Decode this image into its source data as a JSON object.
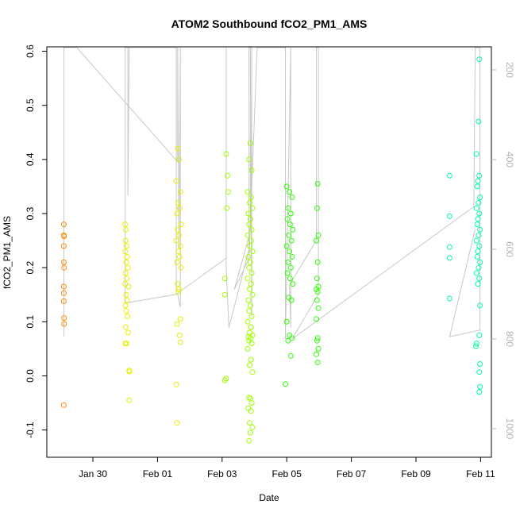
{
  "chart_data": {
    "type": "scatter",
    "title": "ATOM2 Southbound fCO2_PM1_AMS",
    "xlabel": "Date",
    "ylabel": "fCO2_PM1_AMS",
    "ylim": [
      -0.15,
      0.61
    ],
    "yticks": [
      -0.1,
      0.0,
      0.1,
      0.2,
      0.3,
      0.4,
      0.5,
      0.6
    ],
    "ytick_labels": [
      "-0.1",
      "0.0",
      "0.1",
      "0.2",
      "0.3",
      "0.4",
      "0.5",
      "0.6"
    ],
    "x_range_days": [
      "2017-01-29",
      "2017-02-11"
    ],
    "xticks": [
      "2017-01-30",
      "2017-02-01",
      "2017-02-03",
      "2017-02-05",
      "2017-02-07",
      "2017-02-09",
      "2017-02-11"
    ],
    "xtick_labels": [
      "Jan 30",
      "Feb 01",
      "Feb 03",
      "Feb 05",
      "Feb 07",
      "Feb 09",
      "Feb 11"
    ],
    "right_axis": {
      "ylim": [
        1050,
        150
      ],
      "ticks": [
        200,
        400,
        600,
        800,
        1000
      ],
      "tick_labels": [
        "200",
        "400",
        "600",
        "800",
        "1000"
      ],
      "color": "#b3b3b3"
    },
    "grid": false,
    "series": [
      {
        "color": "#ff8c00",
        "points": [
          [
            "2017-01-29T02:24",
            0.28
          ],
          [
            "2017-01-29T02:24",
            0.26
          ],
          [
            "2017-01-29T02:36",
            0.258
          ],
          [
            "2017-01-29T02:24",
            0.24
          ],
          [
            "2017-01-29T02:24",
            0.21
          ],
          [
            "2017-01-29T02:36",
            0.2
          ],
          [
            "2017-01-29T02:24",
            0.165
          ],
          [
            "2017-01-29T02:24",
            0.153
          ],
          [
            "2017-01-29T02:24",
            0.138
          ],
          [
            "2017-01-29T02:36",
            0.107
          ],
          [
            "2017-01-29T02:36",
            0.096
          ],
          [
            "2017-01-29T02:24",
            -0.054
          ]
        ]
      },
      {
        "color": "#e6f000",
        "points": [
          [
            "2017-01-31T00:00",
            0.28
          ],
          [
            "2017-01-31T00:30",
            0.27
          ],
          [
            "2017-01-31T00:15",
            0.25
          ],
          [
            "2017-01-31T01:00",
            0.24
          ],
          [
            "2017-01-31T00:00",
            0.23
          ],
          [
            "2017-01-31T01:30",
            0.22
          ],
          [
            "2017-01-31T00:45",
            0.21
          ],
          [
            "2017-01-31T02:00",
            0.2
          ],
          [
            "2017-01-31T00:20",
            0.19
          ],
          [
            "2017-01-31T01:10",
            0.18
          ],
          [
            "2017-01-31T00:00",
            0.17
          ],
          [
            "2017-01-31T02:30",
            0.165
          ],
          [
            "2017-01-31T00:40",
            0.15
          ],
          [
            "2017-01-31T01:20",
            0.14
          ],
          [
            "2017-01-31T00:10",
            0.13
          ],
          [
            "2017-01-31T00:50",
            0.12
          ],
          [
            "2017-01-31T01:40",
            0.11
          ],
          [
            "2017-01-31T00:30",
            0.09
          ],
          [
            "2017-01-31T02:10",
            0.08
          ],
          [
            "2017-01-31T00:00",
            0.06
          ],
          [
            "2017-01-31T01:00",
            0.06
          ],
          [
            "2017-01-31T03:00",
            0.01
          ],
          [
            "2017-01-31T03:10",
            0.008
          ],
          [
            "2017-01-31T03:00",
            -0.045
          ],
          [
            "2017-02-01T15:00",
            0.42
          ],
          [
            "2017-02-01T16:00",
            0.4
          ],
          [
            "2017-02-01T14:00",
            0.36
          ],
          [
            "2017-02-01T17:00",
            0.34
          ],
          [
            "2017-02-01T15:30",
            0.32
          ],
          [
            "2017-02-01T16:30",
            0.31
          ],
          [
            "2017-02-01T14:30",
            0.3
          ],
          [
            "2017-02-01T17:30",
            0.28
          ],
          [
            "2017-02-01T15:00",
            0.27
          ],
          [
            "2017-02-01T16:00",
            0.26
          ],
          [
            "2017-02-01T14:00",
            0.25
          ],
          [
            "2017-02-01T17:00",
            0.24
          ],
          [
            "2017-02-01T15:30",
            0.23
          ],
          [
            "2017-02-01T16:30",
            0.22
          ],
          [
            "2017-02-01T14:30",
            0.21
          ],
          [
            "2017-02-01T17:30",
            0.2
          ],
          [
            "2017-02-01T15:00",
            0.17
          ],
          [
            "2017-02-01T16:00",
            0.16
          ],
          [
            "2017-02-01T15:30",
            0.155
          ],
          [
            "2017-02-01T17:00",
            0.105
          ],
          [
            "2017-02-01T14:30",
            0.096
          ],
          [
            "2017-02-01T16:30",
            0.075
          ],
          [
            "2017-02-01T17:00",
            0.062
          ],
          [
            "2017-02-01T14:00",
            -0.016
          ],
          [
            "2017-02-01T14:30",
            -0.087
          ]
        ]
      },
      {
        "color": "#9fff00",
        "points": [
          [
            "2017-02-03T03:00",
            0.41
          ],
          [
            "2017-02-03T04:00",
            0.37
          ],
          [
            "2017-02-03T04:30",
            0.34
          ],
          [
            "2017-02-03T03:30",
            0.31
          ],
          [
            "2017-02-03T02:00",
            0.18
          ],
          [
            "2017-02-03T02:00",
            0.15
          ],
          [
            "2017-02-03T03:00",
            -0.005
          ],
          [
            "2017-02-03T02:00",
            -0.008
          ],
          [
            "2017-02-03T21:00",
            0.43
          ],
          [
            "2017-02-03T20:00",
            0.4
          ],
          [
            "2017-02-03T22:00",
            0.38
          ],
          [
            "2017-02-03T19:00",
            0.34
          ],
          [
            "2017-02-03T21:30",
            0.33
          ],
          [
            "2017-02-03T20:30",
            0.32
          ],
          [
            "2017-02-03T22:30",
            0.31
          ],
          [
            "2017-02-03T19:30",
            0.3
          ],
          [
            "2017-02-03T21:00",
            0.29
          ],
          [
            "2017-02-03T20:00",
            0.28
          ],
          [
            "2017-02-03T22:00",
            0.27
          ],
          [
            "2017-02-03T19:00",
            0.26
          ],
          [
            "2017-02-03T21:30",
            0.25
          ],
          [
            "2017-02-03T20:30",
            0.24
          ],
          [
            "2017-02-03T22:30",
            0.23
          ],
          [
            "2017-02-03T19:30",
            0.22
          ],
          [
            "2017-02-03T21:00",
            0.21
          ],
          [
            "2017-02-03T20:00",
            0.2
          ],
          [
            "2017-02-03T22:00",
            0.19
          ],
          [
            "2017-02-03T19:00",
            0.18
          ],
          [
            "2017-02-03T21:30",
            0.17
          ],
          [
            "2017-02-03T20:30",
            0.16
          ],
          [
            "2017-02-03T22:30",
            0.15
          ],
          [
            "2017-02-03T19:30",
            0.14
          ],
          [
            "2017-02-03T21:00",
            0.13
          ],
          [
            "2017-02-03T20:00",
            0.12
          ],
          [
            "2017-02-03T22:00",
            0.11
          ],
          [
            "2017-02-03T19:00",
            0.1
          ],
          [
            "2017-02-03T21:30",
            0.09
          ],
          [
            "2017-02-03T20:30",
            0.08
          ],
          [
            "2017-02-03T22:30",
            0.075
          ],
          [
            "2017-02-03T19:30",
            0.072
          ],
          [
            "2017-02-03T21:00",
            0.07
          ],
          [
            "2017-02-03T20:00",
            0.065
          ],
          [
            "2017-02-03T22:00",
            0.06
          ],
          [
            "2017-02-03T19:00",
            0.05
          ],
          [
            "2017-02-03T21:30",
            0.03
          ],
          [
            "2017-02-03T20:30",
            0.02
          ],
          [
            "2017-02-03T22:30",
            0.007
          ],
          [
            "2017-02-03T20:00",
            -0.04
          ],
          [
            "2017-02-03T21:00",
            -0.042
          ],
          [
            "2017-02-03T22:00",
            -0.05
          ],
          [
            "2017-02-03T19:30",
            -0.06
          ],
          [
            "2017-02-03T21:30",
            -0.065
          ],
          [
            "2017-02-03T20:30",
            -0.087
          ],
          [
            "2017-02-03T22:30",
            -0.095
          ],
          [
            "2017-02-03T21:00",
            -0.105
          ],
          [
            "2017-02-03T20:00",
            -0.12
          ]
        ]
      },
      {
        "color": "#2aff00",
        "points": [
          [
            "2017-02-05T00:00",
            0.35
          ],
          [
            "2017-02-05T02:00",
            0.34
          ],
          [
            "2017-02-05T04:00",
            0.33
          ],
          [
            "2017-02-05T01:00",
            0.31
          ],
          [
            "2017-02-05T03:00",
            0.3
          ],
          [
            "2017-02-05T00:30",
            0.29
          ],
          [
            "2017-02-05T02:30",
            0.28
          ],
          [
            "2017-02-05T04:30",
            0.27
          ],
          [
            "2017-02-05T01:30",
            0.26
          ],
          [
            "2017-02-05T03:30",
            0.25
          ],
          [
            "2017-02-05T00:00",
            0.24
          ],
          [
            "2017-02-05T02:00",
            0.23
          ],
          [
            "2017-02-05T04:00",
            0.22
          ],
          [
            "2017-02-05T01:00",
            0.21
          ],
          [
            "2017-02-05T03:00",
            0.2
          ],
          [
            "2017-02-05T00:30",
            0.19
          ],
          [
            "2017-02-05T02:30",
            0.18
          ],
          [
            "2017-02-05T04:30",
            0.17
          ],
          [
            "2017-02-05T01:30",
            0.145
          ],
          [
            "2017-02-05T03:30",
            0.14
          ],
          [
            "2017-02-05T00:00",
            0.1
          ],
          [
            "2017-02-05T02:00",
            0.075
          ],
          [
            "2017-02-05T04:00",
            0.07
          ],
          [
            "2017-02-05T01:00",
            0.065
          ],
          [
            "2017-02-05T03:00",
            0.037
          ],
          [
            "2017-02-04T23:00",
            -0.015
          ],
          [
            "2017-02-05T23:00",
            0.355
          ],
          [
            "2017-02-05T22:30",
            0.31
          ],
          [
            "2017-02-05T23:30",
            0.26
          ],
          [
            "2017-02-05T22:00",
            0.25
          ],
          [
            "2017-02-05T23:00",
            0.21
          ],
          [
            "2017-02-05T22:30",
            0.18
          ],
          [
            "2017-02-05T23:30",
            0.165
          ],
          [
            "2017-02-05T22:00",
            0.16
          ],
          [
            "2017-02-05T23:00",
            0.155
          ],
          [
            "2017-02-05T22:30",
            0.14
          ],
          [
            "2017-02-05T23:30",
            0.125
          ],
          [
            "2017-02-05T22:00",
            0.105
          ],
          [
            "2017-02-05T23:00",
            0.07
          ],
          [
            "2017-02-05T22:30",
            0.065
          ],
          [
            "2017-02-05T23:30",
            0.05
          ],
          [
            "2017-02-05T22:00",
            0.04
          ],
          [
            "2017-02-05T23:00",
            0.025
          ]
        ]
      },
      {
        "color": "#00ff9f",
        "points": [
          [
            "2017-02-10T01:00",
            0.37
          ],
          [
            "2017-02-10T01:00",
            0.295
          ],
          [
            "2017-02-10T01:00",
            0.238
          ],
          [
            "2017-02-10T01:00",
            0.218
          ],
          [
            "2017-02-10T01:00",
            0.143
          ],
          [
            "2017-02-10T23:00",
            0.585
          ],
          [
            "2017-02-10T22:30",
            0.47
          ],
          [
            "2017-02-10T21:00",
            0.41
          ],
          [
            "2017-02-10T23:00",
            0.37
          ],
          [
            "2017-02-10T22:00",
            0.36
          ],
          [
            "2017-02-10T21:30",
            0.35
          ],
          [
            "2017-02-10T23:30",
            0.33
          ],
          [
            "2017-02-10T22:30",
            0.32
          ],
          [
            "2017-02-10T21:00",
            0.31
          ],
          [
            "2017-02-10T23:00",
            0.3
          ],
          [
            "2017-02-10T22:00",
            0.29
          ],
          [
            "2017-02-10T21:30",
            0.28
          ],
          [
            "2017-02-10T23:30",
            0.27
          ],
          [
            "2017-02-10T22:30",
            0.26
          ],
          [
            "2017-02-10T21:00",
            0.25
          ],
          [
            "2017-02-10T23:00",
            0.24
          ],
          [
            "2017-02-10T22:00",
            0.23
          ],
          [
            "2017-02-10T21:30",
            0.22
          ],
          [
            "2017-02-10T23:30",
            0.21
          ],
          [
            "2017-02-10T22:30",
            0.2
          ],
          [
            "2017-02-10T21:00",
            0.19
          ],
          [
            "2017-02-10T23:00",
            0.18
          ],
          [
            "2017-02-10T22:00",
            0.17
          ],
          [
            "2017-02-10T23:30",
            0.13
          ],
          [
            "2017-02-10T23:00",
            0.075
          ],
          [
            "2017-02-10T21:00",
            0.06
          ],
          [
            "2017-02-10T20:30",
            0.055
          ],
          [
            "2017-02-10T23:30",
            0.022
          ],
          [
            "2017-02-10T23:00",
            0.007
          ],
          [
            "2017-02-10T23:30",
            -0.02
          ],
          [
            "2017-02-10T23:00",
            -0.03
          ]
        ]
      }
    ],
    "altitude_track": {
      "color": "#c8c8c8",
      "points": [
        [
          "2017-01-29T02:30",
          795
        ],
        [
          "2017-01-29T02:30",
          150
        ],
        [
          "2017-01-29T12:00",
          150
        ],
        [
          "2017-02-01T15:00",
          405
        ],
        [
          "2017-02-01T15:00",
          150
        ],
        [
          "2017-02-01T16:00",
          600
        ],
        [
          "2017-02-01T17:00",
          150
        ],
        [
          "2017-02-01T17:00",
          730
        ],
        [
          "2017-02-01T15:00",
          700
        ],
        [
          "2017-01-31T00:00",
          720
        ],
        [
          "2017-01-31T00:00",
          150
        ],
        [
          "2017-01-31T02:00",
          150
        ],
        [
          "2017-01-31T02:00",
          480
        ],
        [
          "2017-01-31T03:00",
          150
        ],
        [
          "2017-01-31T04:00",
          150
        ],
        [
          "2017-02-01T14:00",
          150
        ],
        [
          "2017-02-01T14:00",
          700
        ],
        [
          "2017-02-03T03:00",
          620
        ],
        [
          "2017-02-03T03:00",
          150
        ],
        [
          "2017-02-03T03:00",
          640
        ],
        [
          "2017-02-03T05:00",
          775
        ],
        [
          "2017-02-03T20:00",
          600
        ],
        [
          "2017-02-03T20:00",
          150
        ],
        [
          "2017-02-03T22:00",
          150
        ],
        [
          "2017-02-03T22:00",
          750
        ],
        [
          "2017-02-03T21:00",
          150
        ],
        [
          "2017-02-03T21:00",
          560
        ],
        [
          "2017-02-03T09:00",
          690
        ],
        [
          "2017-02-03T20:00",
          620
        ],
        [
          "2017-02-04T02:00",
          150
        ],
        [
          "2017-02-04T23:00",
          150
        ],
        [
          "2017-02-04T23:00",
          800
        ],
        [
          "2017-02-05T03:00",
          150
        ],
        [
          "2017-02-05T03:00",
          775
        ],
        [
          "2017-02-05T02:00",
          680
        ],
        [
          "2017-02-05T22:00",
          580
        ],
        [
          "2017-02-05T22:00",
          150
        ],
        [
          "2017-02-05T23:30",
          150
        ],
        [
          "2017-02-05T23:30",
          700
        ],
        [
          "2017-02-05T04:00",
          800
        ],
        [
          "2017-02-10T19:00",
          505
        ],
        [
          "2017-02-10T20:00",
          150
        ],
        [
          "2017-02-10T23:30",
          150
        ],
        [
          "2017-02-10T23:30",
          780
        ],
        [
          "2017-02-10T01:00",
          795
        ],
        [
          "2017-02-10T20:00",
          555
        ]
      ]
    }
  }
}
